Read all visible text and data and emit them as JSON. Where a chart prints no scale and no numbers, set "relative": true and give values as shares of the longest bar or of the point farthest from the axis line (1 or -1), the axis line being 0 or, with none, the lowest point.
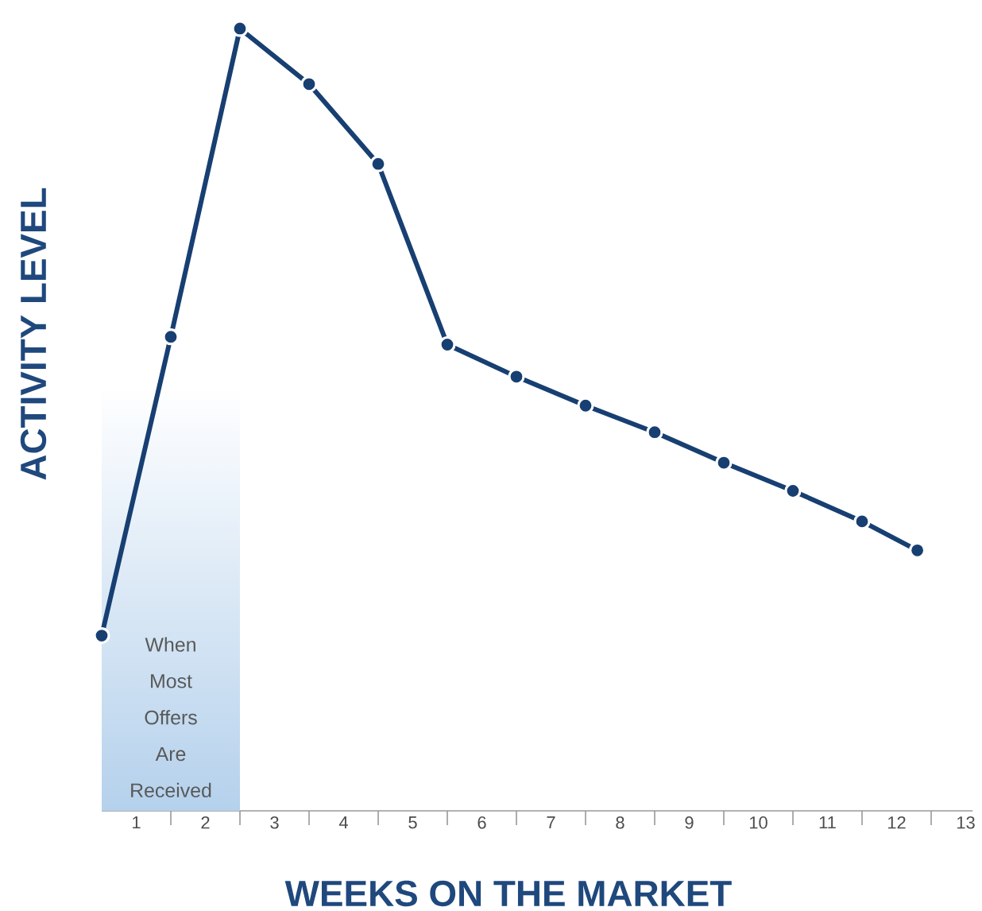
{
  "chart_data": {
    "type": "line",
    "relative": true,
    "xlabel": "WEEKS ON THE MARKET",
    "ylabel": "ACTIVITY LEVEL",
    "x": [
      0,
      1,
      2,
      3,
      4,
      5,
      6,
      7,
      8,
      9,
      10,
      11,
      11.8
    ],
    "values": [
      0.224,
      0.606,
      1,
      0.929,
      0.827,
      0.596,
      0.555,
      0.518,
      0.484,
      0.445,
      0.409,
      0.37,
      0.333
    ],
    "color": "#173f72",
    "marker": "circle",
    "line_style": "solid",
    "grid": false,
    "tick_labels": "x",
    "xlim": [
      0,
      12.6
    ],
    "xticks": [
      {
        "value": 0.5,
        "label": "1"
      },
      {
        "value": 1.5,
        "label": "2"
      },
      {
        "value": 2.5,
        "label": "3"
      },
      {
        "value": 3.5,
        "label": "4"
      },
      {
        "value": 4.5,
        "label": "5"
      },
      {
        "value": 5.5,
        "label": "6"
      },
      {
        "value": 6.5,
        "label": "7"
      },
      {
        "value": 7.5,
        "label": "8"
      },
      {
        "value": 8.5,
        "label": "9"
      },
      {
        "value": 9.5,
        "label": "10"
      },
      {
        "value": 10.5,
        "label": "11"
      },
      {
        "value": 11.5,
        "label": "12"
      },
      {
        "value": 12.5,
        "label": "13"
      },
      {
        "value": 1,
        "label": null
      },
      {
        "value": 2,
        "label": null
      },
      {
        "value": 3,
        "label": null
      },
      {
        "value": 4,
        "label": null
      },
      {
        "value": 5,
        "label": null
      },
      {
        "value": 6,
        "label": null
      },
      {
        "value": 7,
        "label": null
      },
      {
        "value": 8,
        "label": null
      },
      {
        "value": 9,
        "label": null
      },
      {
        "value": 10,
        "label": null
      },
      {
        "value": 11,
        "label": null
      },
      {
        "value": 12,
        "label": null
      }
    ],
    "bands": [
      {
        "axis": "x",
        "from": 0,
        "to": 2,
        "label": "When Most Offers Are Received",
        "color": "#b5d1ec"
      }
    ]
  }
}
